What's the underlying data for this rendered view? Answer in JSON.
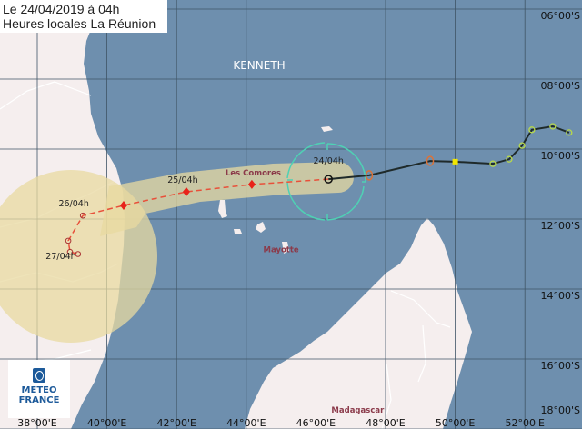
{
  "header": {
    "line1": "Le 24/04/2019 à 04h",
    "line2": "Heures locales La Réunion"
  },
  "storm_name": "KENNETH",
  "places": [
    {
      "name": "Les Comores",
      "lon": 44.2,
      "lat": 10.75
    },
    {
      "name": "Mayotte",
      "lon": 45.0,
      "lat": 12.95
    },
    {
      "name": "Madagascar",
      "lon": 47.2,
      "lat": 17.85
    }
  ],
  "colors": {
    "sea": "#6e8fae",
    "land": "#f5eeee",
    "cone": "#e8d9a0",
    "forecast_track": "#e8503a",
    "past_track": "#1f2a2a",
    "wind_circle": "#4fd1b4",
    "place_label": "#8b3a4a"
  },
  "axes": {
    "lon_labels": [
      "38°00'E",
      "40°00'E",
      "42°00'E",
      "44°00'E",
      "46°00'E",
      "48°00'E",
      "50°00'E",
      "52°00'E"
    ],
    "lat_labels": [
      "06°00'S",
      "08°00'S",
      "10°00'S",
      "12°00'S",
      "14°00'S",
      "16°00'S",
      "18°00'S"
    ]
  },
  "current_position": {
    "label": "24/04h",
    "lon": 46.36,
    "lat": 10.86
  },
  "forecast": [
    {
      "lon": 44.16,
      "lat": 11.01,
      "type": "storm",
      "label": ""
    },
    {
      "lon": 42.28,
      "lat": 11.22,
      "type": "storm",
      "label": "25/04h"
    },
    {
      "lon": 40.48,
      "lat": 11.61,
      "type": "storm",
      "label": ""
    },
    {
      "lon": 39.31,
      "lat": 11.9,
      "type": "depression",
      "label": "26/04h"
    },
    {
      "lon": 38.89,
      "lat": 12.62,
      "type": "depression",
      "label": ""
    },
    {
      "lon": 38.94,
      "lat": 12.94,
      "type": "depression",
      "label": "27/04h"
    },
    {
      "lon": 39.17,
      "lat": 13.0,
      "type": "depression",
      "label": ""
    }
  ],
  "past_track": [
    {
      "lon": 47.53,
      "lat": 10.75,
      "color": "#d9733a"
    },
    {
      "lon": 49.28,
      "lat": 10.34,
      "color": "#d9733a"
    },
    {
      "lon": 50.0,
      "lat": 10.36,
      "color": "#f2e600"
    },
    {
      "lon": 51.08,
      "lat": 10.42,
      "color": "#b8d94a"
    },
    {
      "lon": 51.55,
      "lat": 10.29,
      "color": "#b8d94a"
    },
    {
      "lon": 51.92,
      "lat": 9.9,
      "color": "#b8d94a"
    },
    {
      "lon": 52.2,
      "lat": 9.45,
      "color": "#b8d94a"
    },
    {
      "lon": 52.8,
      "lat": 9.35,
      "color": "#b8d94a"
    },
    {
      "lon": 53.27,
      "lat": 9.53,
      "color": "#b8d94a"
    }
  ],
  "logo": {
    "line1": "METEO",
    "line2": "FRANCE"
  }
}
